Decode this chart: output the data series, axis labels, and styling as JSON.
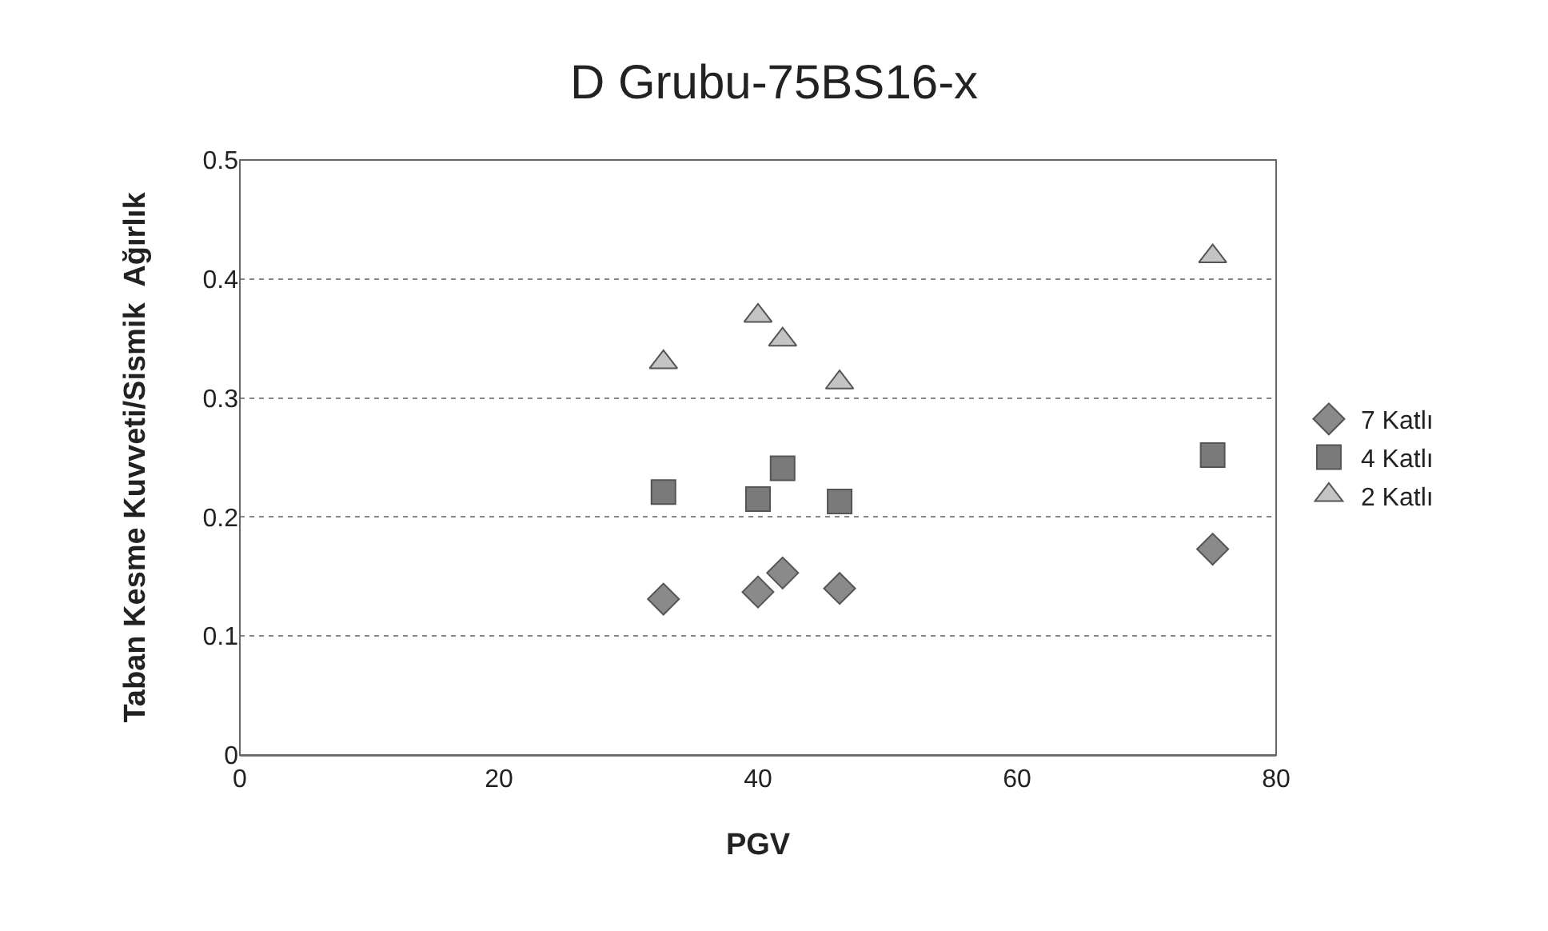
{
  "chart_data": {
    "type": "scatter",
    "title": "D Grubu-75BS16-x",
    "xlabel": "PGV",
    "ylabel": "Taban Kesme Kuvveti/Sismik  Ağırlık",
    "x": [
      32.7,
      40.0,
      41.9,
      46.3,
      75.1
    ],
    "series": [
      {
        "name": "7 Katlı",
        "color": "#8a8a8a",
        "marker": "diamond",
        "values": [
          0.131,
          0.137,
          0.153,
          0.14,
          0.173
        ]
      },
      {
        "name": "4 Katlı",
        "color": "#7a7a7a",
        "marker": "square",
        "values": [
          0.221,
          0.215,
          0.241,
          0.213,
          0.252
        ]
      },
      {
        "name": "2 Katlı",
        "color": "#c4c4c4",
        "marker": "triangle",
        "values": [
          0.33,
          0.369,
          0.349,
          0.313,
          0.419
        ]
      }
    ],
    "xlim": [
      0,
      80
    ],
    "xticks": [
      0,
      20,
      40,
      60,
      80
    ],
    "ylim": [
      0,
      0.5
    ],
    "yticks": [
      0,
      {
        "value": 0.1,
        "label": "0.1"
      },
      {
        "value": 0.2,
        "label": "0.2"
      },
      {
        "value": 0.3,
        "label": "0.3"
      },
      {
        "value": 0.4,
        "label": "0.4"
      },
      {
        "value": 0.5,
        "label": "0.5"
      }
    ],
    "grid": "y",
    "legend": "right"
  }
}
